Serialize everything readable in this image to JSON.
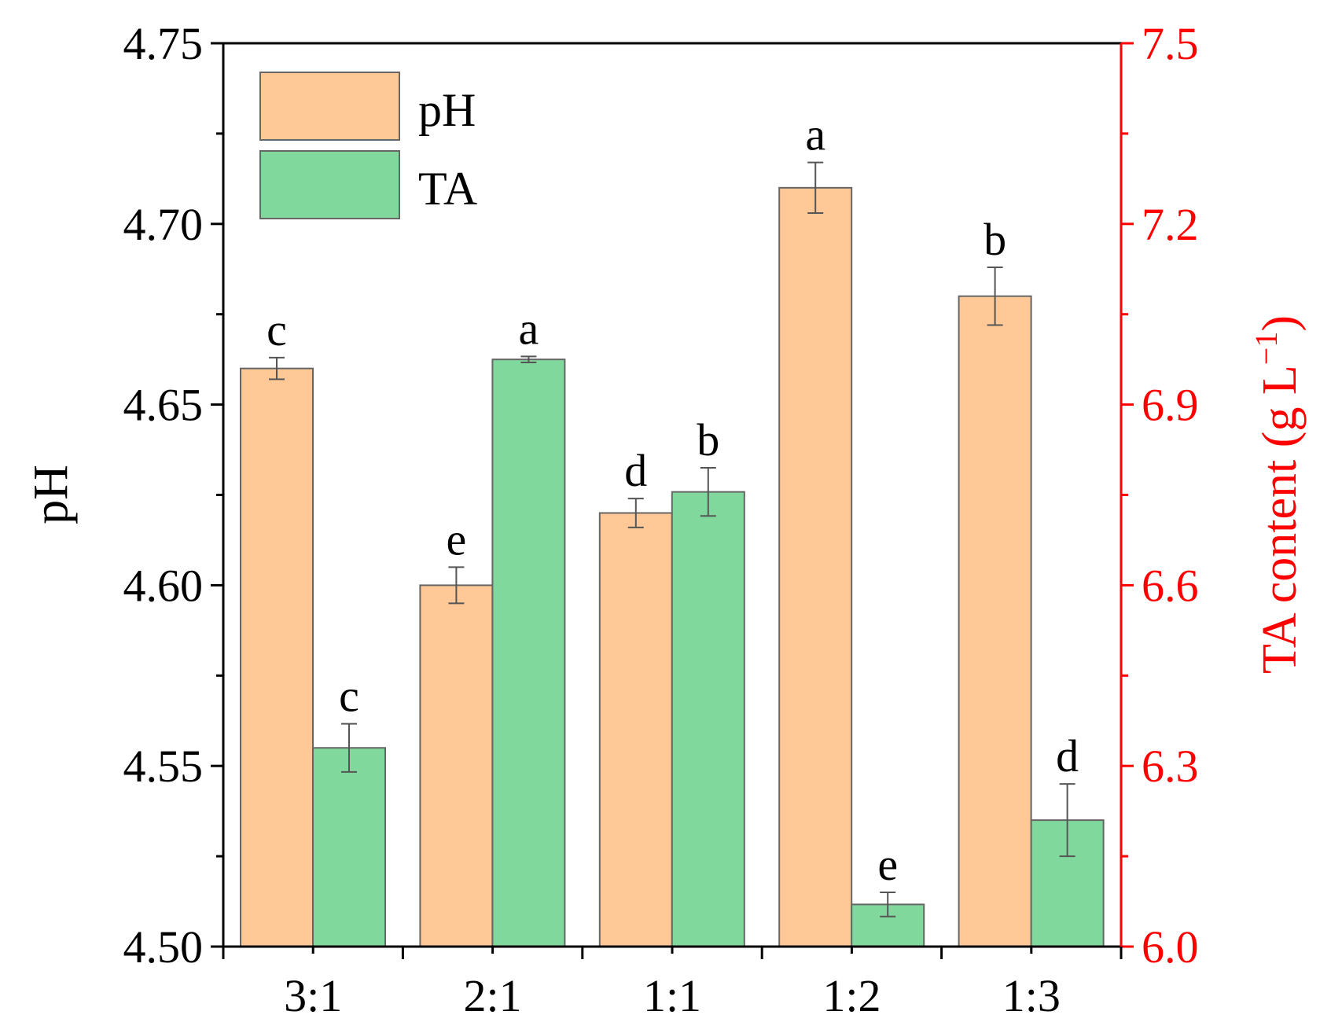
{
  "chart_data": {
    "type": "bar",
    "categories": [
      "3:1",
      "2:1",
      "1:1",
      "1:2",
      "1:3"
    ],
    "series": [
      {
        "name": "pH",
        "axis": "left",
        "color": "#FFC896",
        "values": [
          4.66,
          4.6,
          4.62,
          4.71,
          4.68
        ],
        "errors": [
          0.003,
          0.005,
          0.004,
          0.007,
          0.008
        ],
        "labels": [
          "c",
          "e",
          "d",
          "a",
          "b"
        ]
      },
      {
        "name": "TA",
        "axis": "right",
        "color": "#80D89C",
        "values": [
          6.33,
          6.975,
          6.755,
          6.07,
          6.21
        ],
        "errors": [
          0.04,
          0.005,
          0.04,
          0.02,
          0.06
        ],
        "labels": [
          "c",
          "a",
          "b",
          "e",
          "d"
        ]
      }
    ],
    "y_left": {
      "label": "pH",
      "ylim": [
        4.5,
        4.75
      ],
      "ticks": [
        "4.50",
        "4.55",
        "4.60",
        "4.65",
        "4.70",
        "4.75"
      ],
      "color": "#000000"
    },
    "y_right": {
      "label": "TA content (g L",
      "label_sup": "−1",
      "label_end": ")",
      "ylim": [
        6.0,
        7.5
      ],
      "ticks": [
        "6.0",
        "6.3",
        "6.6",
        "6.9",
        "7.2",
        "7.5"
      ],
      "color": "#FF0000"
    },
    "legend": {
      "position": "top-left",
      "entries": [
        "pH",
        "TA"
      ]
    },
    "grid": false
  }
}
